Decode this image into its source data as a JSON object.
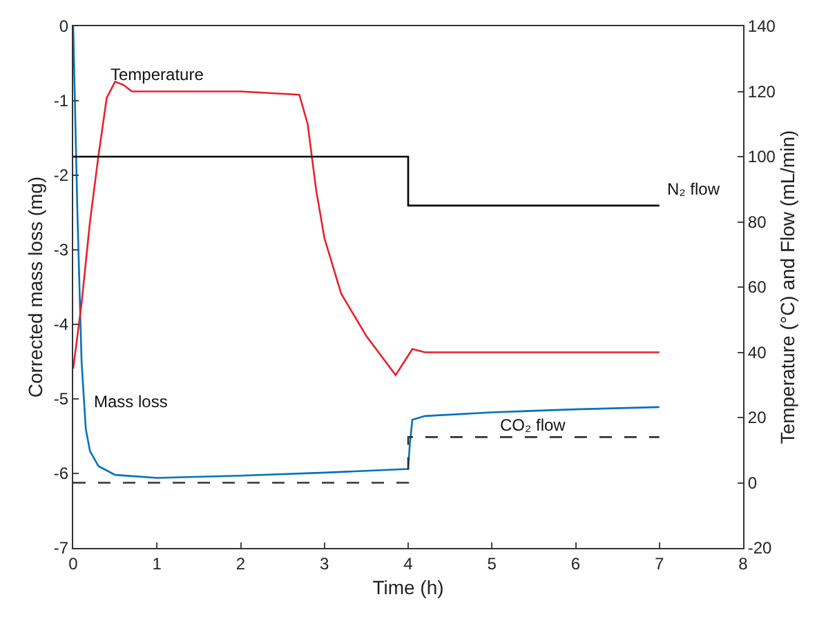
{
  "chart_data": {
    "type": "line",
    "xlabel": "Time (h)",
    "ylabel": "Corrected mass loss (mg)",
    "y2label": "Temperature (°C) and Flow (mL/min)",
    "xlim": [
      0,
      8
    ],
    "xticks": [
      0,
      1,
      2,
      3,
      4,
      5,
      6,
      7,
      8
    ],
    "ylim": [
      -7,
      0
    ],
    "yticks": [
      -7,
      -6,
      -5,
      -4,
      -3,
      -2,
      -1,
      0
    ],
    "y2lim": [
      -20,
      140
    ],
    "y2ticks": [
      -20,
      0,
      20,
      40,
      60,
      80,
      100,
      120,
      140
    ],
    "grid": false,
    "legend": false,
    "marker": "none",
    "series": [
      {
        "name": "Temperature",
        "color": "#e8212a",
        "axis": "y2",
        "line_style": "solid",
        "x": [
          0,
          0.1,
          0.2,
          0.3,
          0.4,
          0.5,
          0.6,
          0.7,
          1,
          2,
          2.7,
          2.8,
          2.9,
          3,
          3.2,
          3.5,
          3.85,
          3.95,
          4,
          4.05,
          4.2,
          5,
          7
        ],
        "values": [
          35,
          55,
          80,
          100,
          118,
          123,
          122,
          120,
          120,
          120,
          119,
          110,
          90,
          75,
          58,
          45,
          33,
          37,
          39,
          41,
          40,
          40,
          40
        ]
      },
      {
        "name": "N₂ flow",
        "color": "#000000",
        "axis": "y2",
        "line_style": "solid",
        "x": [
          0,
          4,
          4,
          7
        ],
        "values": [
          100,
          100,
          85,
          85
        ]
      },
      {
        "name": "Mass loss",
        "color": "#0072bd",
        "axis": "y",
        "line_style": "solid",
        "x": [
          0,
          0.05,
          0.1,
          0.15,
          0.2,
          0.3,
          0.5,
          1,
          2,
          3,
          4,
          4.02,
          4.05,
          4.2,
          5,
          6,
          7
        ],
        "values": [
          0,
          -2.5,
          -4.5,
          -5.4,
          -5.7,
          -5.9,
          -6.02,
          -6.06,
          -6.03,
          -5.99,
          -5.94,
          -5.6,
          -5.28,
          -5.23,
          -5.18,
          -5.14,
          -5.11
        ]
      },
      {
        "name": "CO₂ flow",
        "color": "#333333",
        "axis": "y2",
        "line_style": "dashed",
        "x": [
          0,
          4,
          4,
          7
        ],
        "values": [
          0,
          0,
          14,
          14
        ]
      }
    ]
  }
}
